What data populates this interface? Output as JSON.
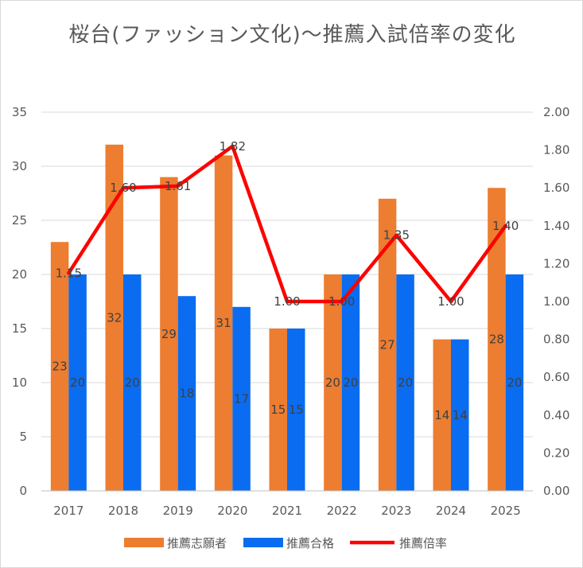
{
  "chart_data": {
    "type": "bar",
    "title": "桜台(ファッション文化)〜推薦入試倍率の変化",
    "categories": [
      "2017",
      "2018",
      "2019",
      "2020",
      "2021",
      "2022",
      "2023",
      "2024",
      "2025"
    ],
    "series": [
      {
        "name": "推薦志願者",
        "type": "bar",
        "axis": "left",
        "color": "#ED7D31",
        "values": [
          23,
          32,
          29,
          31,
          15,
          20,
          27,
          14,
          28
        ]
      },
      {
        "name": "推薦合格",
        "type": "bar",
        "axis": "left",
        "color": "#0A6CF0",
        "values": [
          20,
          20,
          18,
          17,
          15,
          20,
          20,
          14,
          20
        ]
      },
      {
        "name": "推薦倍率",
        "type": "line",
        "axis": "right",
        "color": "#FF0000",
        "values": [
          1.15,
          1.6,
          1.61,
          1.82,
          1.0,
          1.0,
          1.35,
          1.0,
          1.4
        ],
        "labels": [
          "1.15",
          "1.60",
          "1.61",
          "1.82",
          "1.00",
          "1.00",
          "1.35",
          "1.00",
          "1.40"
        ]
      }
    ],
    "left_axis": {
      "min": 0,
      "max": 35,
      "step": 5,
      "ticks": [
        "0",
        "5",
        "10",
        "15",
        "20",
        "25",
        "30",
        "35"
      ]
    },
    "right_axis": {
      "min": 0,
      "max": 2,
      "step": 0.2,
      "ticks": [
        "0.00",
        "0.20",
        "0.40",
        "0.60",
        "0.80",
        "1.00",
        "1.20",
        "1.40",
        "1.60",
        "1.80",
        "2.00"
      ]
    },
    "grid": true,
    "legend_position": "bottom"
  }
}
